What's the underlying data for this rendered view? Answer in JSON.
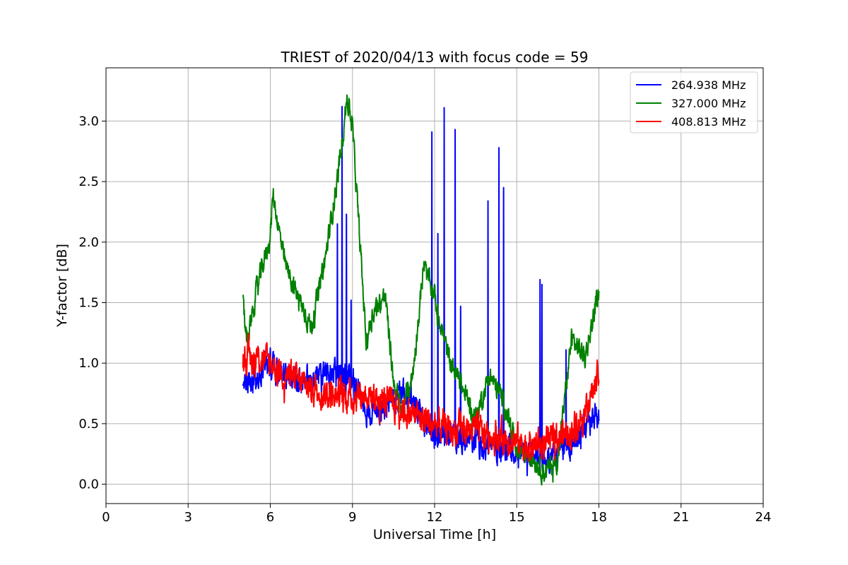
{
  "chart_data": {
    "type": "line",
    "title": "TRIEST of 2020/04/13 with focus code = 59",
    "xlabel": "Universal Time [h]",
    "ylabel": "Y-factor [dB]",
    "xlim": [
      0,
      24
    ],
    "ylim": [
      -0.16,
      3.44
    ],
    "xticks": [
      0,
      3,
      6,
      9,
      12,
      15,
      18,
      21,
      24
    ],
    "xtick_labels": [
      "0",
      "3",
      "6",
      "9",
      "12",
      "15",
      "18",
      "21",
      "24"
    ],
    "yticks": [
      0.0,
      0.5,
      1.0,
      1.5,
      2.0,
      2.5,
      3.0
    ],
    "ytick_labels": [
      "0.0",
      "0.5",
      "1.0",
      "1.5",
      "2.0",
      "2.5",
      "3.0"
    ],
    "grid": true,
    "legend_position": "top-right",
    "series": [
      {
        "name": "264.938 MHz",
        "color": "#0000ff",
        "noise": 0.09,
        "x": [
          5.0,
          5.5,
          6.0,
          6.5,
          7.0,
          7.5,
          8.0,
          8.5,
          9.0,
          9.5,
          10.0,
          10.5,
          11.0,
          11.5,
          12.0,
          12.5,
          13.0,
          13.5,
          14.0,
          14.5,
          15.0,
          15.5,
          16.0,
          16.5,
          17.0,
          17.5,
          18.0
        ],
        "values": [
          0.78,
          0.92,
          1.0,
          0.9,
          0.85,
          0.9,
          0.9,
          0.95,
          0.85,
          0.6,
          0.62,
          0.7,
          0.78,
          0.55,
          0.4,
          0.4,
          0.35,
          0.35,
          0.3,
          0.32,
          0.28,
          0.26,
          0.2,
          0.25,
          0.35,
          0.45,
          0.55
        ],
        "spikes": [
          {
            "x": 8.45,
            "y": 2.15
          },
          {
            "x": 8.62,
            "y": 3.12
          },
          {
            "x": 8.78,
            "y": 2.23
          },
          {
            "x": 8.95,
            "y": 1.52
          },
          {
            "x": 11.9,
            "y": 2.91
          },
          {
            "x": 12.12,
            "y": 2.07
          },
          {
            "x": 12.35,
            "y": 3.11
          },
          {
            "x": 12.75,
            "y": 2.93
          },
          {
            "x": 12.95,
            "y": 1.47
          },
          {
            "x": 13.95,
            "y": 2.34
          },
          {
            "x": 14.35,
            "y": 2.78
          },
          {
            "x": 14.52,
            "y": 2.45
          },
          {
            "x": 15.85,
            "y": 1.69
          },
          {
            "x": 15.92,
            "y": 1.65
          },
          {
            "x": 16.8,
            "y": 1.11
          }
        ]
      },
      {
        "name": "327.000 MHz",
        "color": "#008000",
        "noise": 0.07,
        "x": [
          5.0,
          5.15,
          5.5,
          6.0,
          6.1,
          6.5,
          7.0,
          7.5,
          8.0,
          8.5,
          8.8,
          9.0,
          9.5,
          9.8,
          10.2,
          10.5,
          10.8,
          11.2,
          11.6,
          12.0,
          12.5,
          13.0,
          13.5,
          14.0,
          14.5,
          15.0,
          15.5,
          16.0,
          16.5,
          17.0,
          17.5,
          18.0
        ],
        "values": [
          1.48,
          1.2,
          1.6,
          2.05,
          2.4,
          1.85,
          1.55,
          1.3,
          1.85,
          2.6,
          3.2,
          2.95,
          1.2,
          1.45,
          1.55,
          0.85,
          0.6,
          0.9,
          1.8,
          1.55,
          1.05,
          0.8,
          0.55,
          0.9,
          0.7,
          0.3,
          0.25,
          0.1,
          0.2,
          1.2,
          1.05,
          1.6
        ]
      },
      {
        "name": "408.813 MHz",
        "color": "#ff0000",
        "noise": 0.1,
        "x": [
          5.0,
          5.5,
          6.0,
          6.5,
          7.0,
          7.5,
          8.0,
          8.5,
          9.0,
          9.5,
          10.0,
          10.5,
          11.0,
          11.5,
          12.0,
          12.5,
          13.0,
          13.5,
          14.0,
          14.5,
          15.0,
          15.5,
          16.0,
          16.5,
          17.0,
          17.5,
          18.0
        ],
        "values": [
          1.05,
          1.05,
          1.0,
          0.92,
          0.85,
          0.8,
          0.75,
          0.75,
          0.72,
          0.75,
          0.7,
          0.65,
          0.6,
          0.55,
          0.5,
          0.45,
          0.45,
          0.45,
          0.4,
          0.4,
          0.35,
          0.32,
          0.32,
          0.38,
          0.45,
          0.6,
          0.9
        ]
      }
    ]
  }
}
